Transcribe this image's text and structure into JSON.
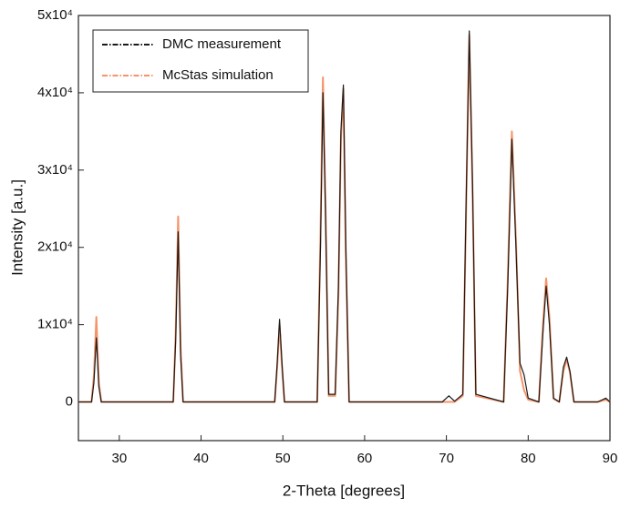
{
  "chart_data": {
    "type": "line",
    "xlabel": "2-Theta [degrees]",
    "ylabel": "Intensity [a.u.]",
    "x": [
      25,
      26.6,
      26.9,
      27.2,
      27.5,
      27.8,
      36.6,
      36.9,
      37.2,
      37.5,
      37.8,
      49.0,
      49.3,
      49.6,
      49.9,
      50.2,
      54.2,
      54.6,
      54.9,
      55.2,
      55.6,
      56.4,
      56.8,
      57.1,
      57.4,
      57.7,
      58.1,
      69.5,
      70.3,
      71.0,
      72.0,
      72.4,
      72.8,
      73.2,
      73.6,
      77.0,
      77.5,
      78.0,
      78.5,
      79.0,
      79.5,
      80.0,
      81.3,
      81.8,
      82.2,
      82.6,
      83.1,
      83.8,
      84.3,
      84.7,
      85.1,
      85.6,
      88.5,
      89.5,
      90
    ],
    "series": [
      {
        "name": "DMC measurement",
        "color": "#1a1a1a",
        "dash": "6,2,1.5,2",
        "values": [
          0,
          0,
          2500,
          8300,
          2000,
          0,
          0,
          8000,
          22000,
          6000,
          0,
          0,
          5000,
          10700,
          5000,
          0,
          0,
          20000,
          40000,
          25000,
          1000,
          1000,
          15000,
          35000,
          41000,
          20000,
          0,
          0,
          800,
          100,
          1000,
          25000,
          48000,
          28000,
          1000,
          0,
          15000,
          34000,
          20000,
          5000,
          3500,
          500,
          0,
          9000,
          15000,
          10000,
          500,
          0,
          4500,
          5800,
          4000,
          0,
          0,
          500,
          0
        ]
      },
      {
        "name": "McStas simulation",
        "color": "#f5946a",
        "dash": "6,2,1.5,2",
        "values": [
          0,
          0,
          3500,
          11000,
          2500,
          0,
          0,
          9000,
          24000,
          7000,
          0,
          0,
          4500,
          10000,
          4500,
          0,
          0,
          22000,
          42000,
          26000,
          800,
          800,
          14000,
          34000,
          40500,
          19000,
          0,
          0,
          0,
          0,
          800,
          24000,
          47500,
          27000,
          800,
          0,
          16000,
          35000,
          21000,
          4000,
          1500,
          300,
          0,
          10000,
          16000,
          11000,
          400,
          0,
          4000,
          5500,
          3800,
          0,
          0,
          300,
          0
        ]
      }
    ],
    "xlim": [
      25,
      90
    ],
    "xticks": [
      30,
      40,
      50,
      60,
      70,
      80,
      90
    ],
    "ylim": [
      -5000,
      50000
    ],
    "yticks": [
      0,
      {
        "value": 10000,
        "label": "1x10⁴"
      },
      {
        "value": 20000,
        "label": "2x10⁴"
      },
      {
        "value": 30000,
        "label": "3x10⁴"
      },
      {
        "value": 40000,
        "label": "4x10⁴"
      },
      {
        "value": 50000,
        "label": "5x10⁴"
      }
    ],
    "legend": "upper left"
  }
}
